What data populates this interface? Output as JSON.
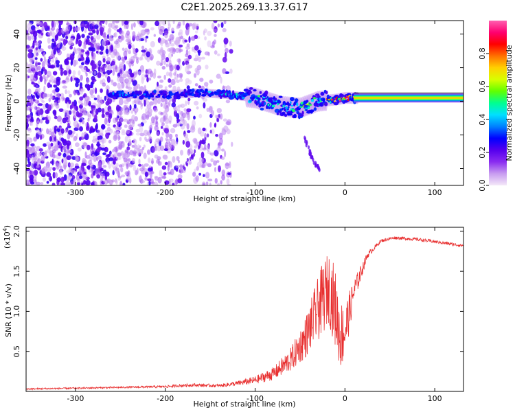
{
  "title": "C2E1.2025.269.13.37.G17",
  "chart_data": [
    {
      "type": "heatmap",
      "name": "spectrogram",
      "xlabel": "Height of straight line (km)",
      "ylabel": "Frequency (Hz)",
      "xlim": [
        -355,
        132
      ],
      "ylim": [
        -50,
        48
      ],
      "xticks": [
        -300,
        -200,
        -100,
        0,
        100
      ],
      "yticks": [
        -40,
        -20,
        0,
        20,
        40
      ],
      "xtick_labels": [
        "-300",
        "-200",
        "-100",
        "0",
        "100"
      ],
      "ytick_labels": [
        "-40",
        "-20",
        "0",
        "20",
        "40"
      ],
      "colorbar": {
        "label": "Normalized spectral amplitude",
        "range": [
          0,
          1
        ],
        "ticks": [
          0.0,
          0.2,
          0.4,
          0.6,
          0.8
        ],
        "tick_labels": [
          "0.0",
          "0.2",
          "0.4",
          "0.6",
          "0.8"
        ],
        "colors": [
          "#f4e8f8",
          "#c89cf0",
          "#8a2cf0",
          "#5500ee",
          "#0000ff",
          "#0080ff",
          "#00e0ff",
          "#00ff90",
          "#60ff00",
          "#d8ff00",
          "#ffd000",
          "#ff7000",
          "#ff0000",
          "#ff0070",
          "#ff60b0"
        ]
      },
      "ridge": {
        "x": [
          -262,
          -230,
          -200,
          -160,
          -130,
          -100,
          -70,
          -50,
          -30,
          -10,
          0,
          20,
          60,
          132
        ],
        "y": [
          4,
          4,
          4,
          5,
          4,
          2,
          -3,
          -4,
          0,
          1,
          2,
          2,
          2,
          2
        ],
        "amplitude": [
          0.35,
          0.3,
          0.3,
          0.35,
          0.4,
          0.45,
          0.45,
          0.5,
          0.55,
          0.8,
          0.85,
          0.7,
          0.65,
          0.65
        ]
      },
      "branches": [
        {
          "x": [
            -180,
            -160,
            -140
          ],
          "y": [
            -40,
            -25,
            -10
          ]
        },
        {
          "x": [
            -45,
            -38,
            -28
          ],
          "y": [
            -22,
            -32,
            -42
          ]
        }
      ]
    },
    {
      "type": "line",
      "name": "snr",
      "xlabel": "Height of straight line (km)",
      "ylabel": "SNR (10 * v/v)",
      "yexponent_label": "(x10",
      "yexponent_power": "4",
      "yexponent_close": ")",
      "xlim": [
        -355,
        132
      ],
      "ylim": [
        0,
        2.05
      ],
      "xticks": [
        -300,
        -200,
        -100,
        0,
        100
      ],
      "yticks": [
        0.5,
        1.0,
        1.5,
        2.0
      ],
      "xtick_labels": [
        "-300",
        "-200",
        "-100",
        "0",
        "100"
      ],
      "ytick_labels": [
        "0.5",
        "1.0",
        "1.5",
        "2.0"
      ],
      "color": "#e83030",
      "series": {
        "name": "SNR",
        "x": [
          -355,
          -300,
          -250,
          -200,
          -170,
          -140,
          -120,
          -100,
          -80,
          -60,
          -45,
          -35,
          -25,
          -18,
          -12,
          -5,
          0,
          10,
          25,
          40,
          55,
          80,
          100,
          132
        ],
        "y": [
          0.03,
          0.04,
          0.05,
          0.06,
          0.08,
          0.07,
          0.1,
          0.14,
          0.22,
          0.4,
          0.65,
          0.9,
          1.15,
          1.3,
          1.1,
          0.7,
          0.75,
          1.25,
          1.7,
          1.88,
          1.92,
          1.9,
          1.87,
          1.82
        ],
        "noise_amplitude": [
          0.01,
          0.01,
          0.01,
          0.015,
          0.02,
          0.02,
          0.03,
          0.05,
          0.08,
          0.15,
          0.25,
          0.35,
          0.45,
          0.45,
          0.5,
          0.45,
          0.35,
          0.15,
          0.04,
          0.02,
          0.02,
          0.02,
          0.02,
          0.02
        ]
      }
    }
  ]
}
